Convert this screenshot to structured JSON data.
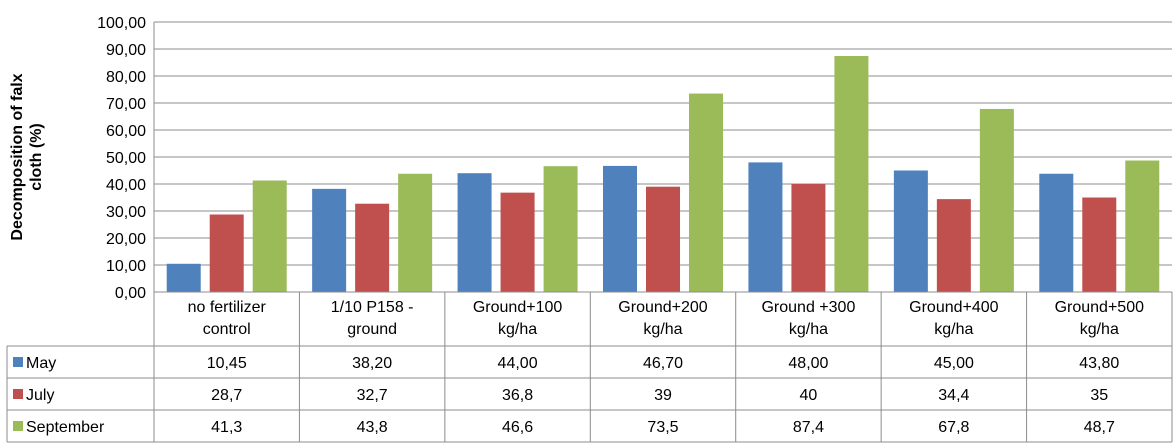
{
  "chart_data": {
    "type": "bar",
    "ylabel": "Decomposition of falx cloth (%)",
    "ylabel_lines": [
      "Decomposition of falx",
      "cloth (%)"
    ],
    "ylim": [
      0,
      100
    ],
    "y_ticks": [
      "0,00",
      "10,00",
      "20,00",
      "30,00",
      "40,00",
      "50,00",
      "60,00",
      "70,00",
      "80,00",
      "90,00",
      "100,00"
    ],
    "grid": true,
    "legend": "data-table",
    "categories": [
      "no fertilizer control",
      "1/10 P158 - ground",
      "Ground+100 kg/ha",
      "Ground+200 kg/ha",
      "Ground +300 kg/ha",
      "Ground+400 kg/ha",
      "Ground+500 kg/ha"
    ],
    "category_lines": [
      [
        "no fertilizer",
        "control"
      ],
      [
        "1/10 P158 -",
        "ground"
      ],
      [
        "Ground+100",
        "kg/ha"
      ],
      [
        "Ground+200",
        "kg/ha"
      ],
      [
        "Ground +300",
        "kg/ha"
      ],
      [
        "Ground+400",
        "kg/ha"
      ],
      [
        "Ground+500",
        "kg/ha"
      ]
    ],
    "series": [
      {
        "name": "May",
        "color": "#4f81bd",
        "values": [
          10.45,
          38.2,
          44.0,
          46.7,
          48.0,
          45.0,
          43.8
        ],
        "labels": [
          "10,45",
          "38,20",
          "44,00",
          "46,70",
          "48,00",
          "45,00",
          "43,80"
        ]
      },
      {
        "name": "July",
        "color": "#c0504d",
        "values": [
          28.7,
          32.7,
          36.8,
          39,
          40,
          34.4,
          35
        ],
        "labels": [
          "28,7",
          "32,7",
          "36,8",
          "39",
          "40",
          "34,4",
          "35"
        ]
      },
      {
        "name": "September",
        "color": "#9bbb59",
        "values": [
          41.3,
          43.8,
          46.6,
          73.5,
          87.4,
          67.8,
          48.7
        ],
        "labels": [
          "41,3",
          "43,8",
          "46,6",
          "73,5",
          "87,4",
          "67,8",
          "48,7"
        ]
      }
    ]
  }
}
